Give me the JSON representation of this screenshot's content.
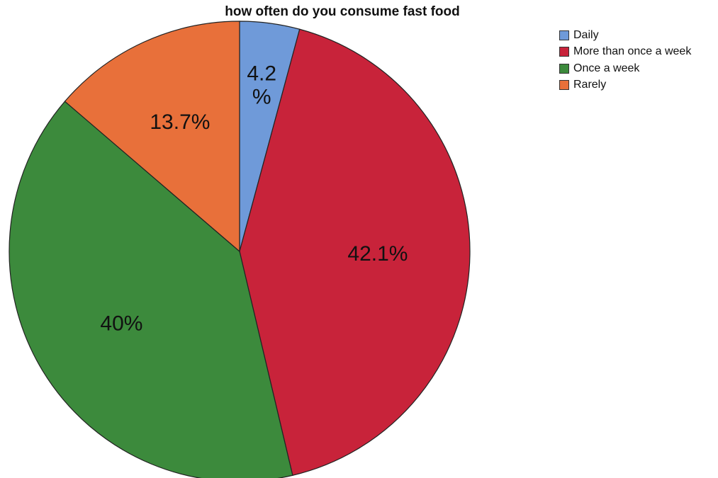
{
  "chart_data": {
    "type": "pie",
    "title": "how often do you consume fast food",
    "categories": [
      "Daily",
      "More than once a week",
      "Once a week",
      "Rarely"
    ],
    "values": [
      4.2,
      42.1,
      40,
      13.7
    ],
    "labels": [
      "4.2\n%",
      "42.1%",
      "40%",
      "13.7%"
    ],
    "colors": [
      "#6f9ad9",
      "#c8233a",
      "#3c8a3c",
      "#e8703a"
    ],
    "start": "12 o'clock",
    "direction": "clockwise",
    "legend_position": "top-right"
  }
}
